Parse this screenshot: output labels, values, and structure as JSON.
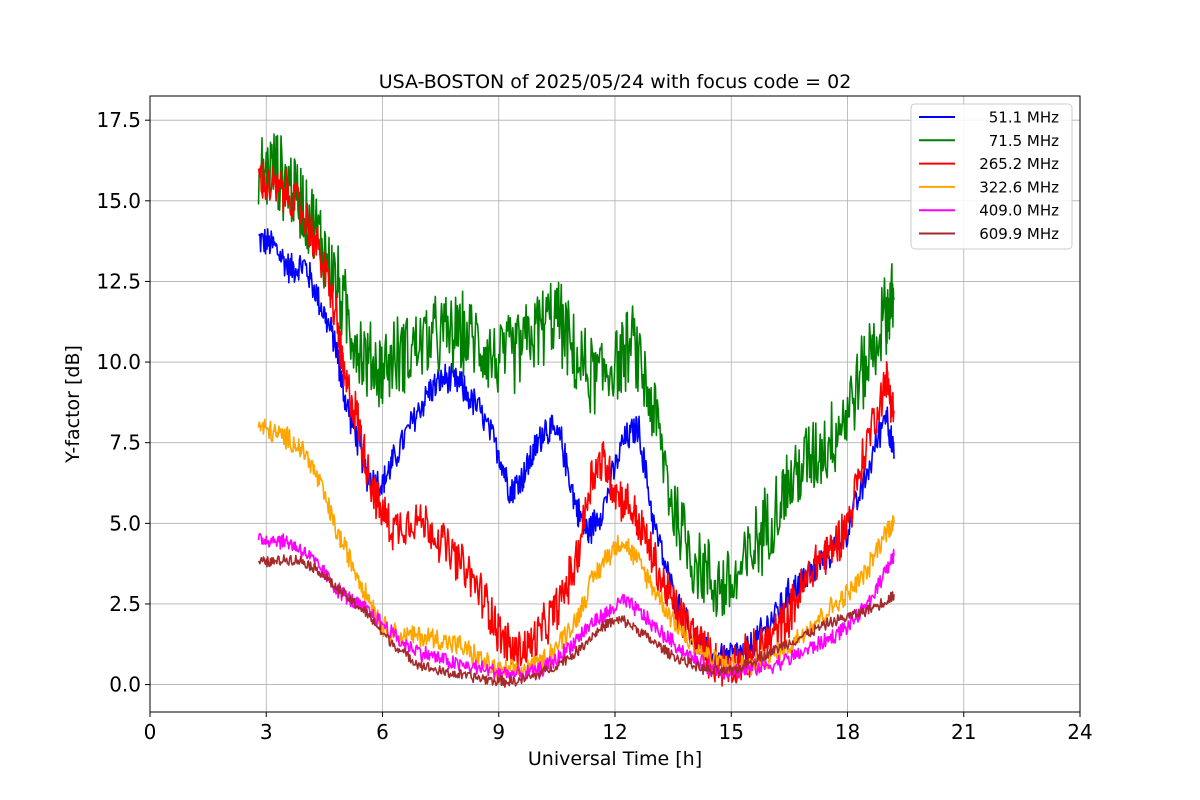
{
  "chart_data": {
    "type": "line",
    "title": "USA-BOSTON of 2025/05/24 with focus code = 02",
    "xlabel": "Universal Time [h]",
    "ylabel": "Y-factor [dB]",
    "xlim": [
      0,
      24
    ],
    "ylim": [
      -0.85,
      18.25
    ],
    "x_ticks": [
      0,
      3,
      6,
      9,
      12,
      15,
      18,
      21,
      24
    ],
    "y_ticks": [
      0.0,
      2.5,
      5.0,
      7.5,
      10.0,
      12.5,
      15.0,
      17.5
    ],
    "y_tick_labels": [
      "0.0",
      "2.5",
      "5.0",
      "7.5",
      "10.0",
      "12.5",
      "15.0",
      "17.5"
    ],
    "grid": true,
    "legend_position": "top-right",
    "series": [
      {
        "name": "51.1 MHz",
        "color": "#0000ff",
        "x": [
          2.8,
          3.2,
          3.6,
          4.0,
          4.4,
          4.8,
          5.0,
          5.3,
          5.6,
          6.0,
          6.3,
          6.8,
          7.2,
          7.6,
          8.0,
          8.5,
          9.0,
          9.3,
          9.6,
          9.9,
          10.2,
          10.6,
          11.0,
          11.3,
          11.7,
          12.2,
          12.6,
          13.0,
          13.5,
          14.0,
          14.5,
          15.0,
          15.4,
          15.8,
          16.2,
          16.6,
          17.0,
          17.5,
          18.0,
          18.5,
          19.0,
          19.2
        ],
        "values": [
          13.8,
          13.6,
          12.9,
          13.0,
          11.8,
          10.5,
          9.0,
          7.8,
          6.5,
          6.2,
          7.0,
          8.2,
          9.1,
          9.5,
          9.3,
          8.5,
          7.2,
          6.0,
          6.4,
          7.2,
          8.0,
          7.6,
          5.5,
          4.7,
          5.5,
          7.5,
          8.0,
          5.0,
          2.8,
          1.5,
          0.8,
          0.9,
          1.0,
          1.6,
          2.3,
          3.0,
          3.4,
          4.0,
          4.8,
          6.5,
          8.5,
          7.0
        ]
      },
      {
        "name": "71.5 MHz",
        "color": "#008000",
        "x": [
          2.8,
          3.2,
          3.6,
          4.0,
          4.4,
          4.8,
          5.2,
          5.6,
          6.0,
          6.5,
          7.0,
          7.5,
          8.0,
          8.5,
          9.0,
          9.5,
          10.0,
          10.5,
          11.0,
          11.5,
          12.0,
          12.5,
          13.0,
          13.5,
          14.0,
          14.5,
          15.0,
          15.5,
          16.0,
          16.5,
          17.0,
          17.5,
          18.0,
          18.5,
          19.0,
          19.2
        ],
        "values": [
          15.8,
          16.0,
          15.5,
          14.8,
          13.8,
          12.5,
          11.0,
          10.0,
          9.8,
          10.3,
          10.6,
          10.8,
          10.9,
          10.6,
          10.0,
          10.4,
          11.0,
          11.5,
          10.0,
          9.5,
          10.0,
          10.5,
          8.5,
          5.5,
          4.0,
          3.2,
          3.0,
          4.0,
          5.2,
          6.2,
          7.0,
          7.5,
          8.5,
          10.0,
          11.5,
          12.0
        ]
      },
      {
        "name": "265.2 MHz",
        "color": "#ff0000",
        "x": [
          2.8,
          3.2,
          3.6,
          4.0,
          4.4,
          4.8,
          5.0,
          5.3,
          5.6,
          5.9,
          6.3,
          6.8,
          7.3,
          7.8,
          8.3,
          8.7,
          9.0,
          9.4,
          9.8,
          10.2,
          10.6,
          11.0,
          11.4,
          11.7,
          12.0,
          12.4,
          12.8,
          13.2,
          13.6,
          14.0,
          14.4,
          14.8,
          15.2,
          15.6,
          16.0,
          16.4,
          16.8,
          17.2,
          17.6,
          18.0,
          18.5,
          19.0,
          19.2
        ],
        "values": [
          15.7,
          15.4,
          15.2,
          14.5,
          13.3,
          11.5,
          9.5,
          8.5,
          6.8,
          5.5,
          4.8,
          5.2,
          4.8,
          4.0,
          3.3,
          2.5,
          1.6,
          1.0,
          1.2,
          1.8,
          2.6,
          3.8,
          6.5,
          7.0,
          6.0,
          5.5,
          4.5,
          3.2,
          2.3,
          1.6,
          0.9,
          0.6,
          0.7,
          1.0,
          1.4,
          2.0,
          2.9,
          3.8,
          4.2,
          5.0,
          7.5,
          9.5,
          8.5
        ]
      },
      {
        "name": "322.6 MHz",
        "color": "#ffa500",
        "x": [
          2.8,
          3.2,
          3.6,
          4.0,
          4.4,
          4.8,
          5.2,
          5.6,
          6.0,
          6.5,
          7.0,
          7.5,
          8.0,
          8.5,
          9.0,
          9.5,
          10.0,
          10.5,
          11.0,
          11.4,
          11.8,
          12.2,
          12.6,
          13.0,
          13.5,
          14.0,
          14.5,
          15.0,
          15.5,
          16.0,
          16.5,
          17.0,
          17.5,
          18.0,
          18.5,
          19.0,
          19.2
        ],
        "values": [
          8.0,
          7.8,
          7.6,
          7.2,
          6.2,
          4.8,
          3.8,
          2.8,
          1.8,
          1.5,
          1.5,
          1.4,
          1.2,
          0.8,
          0.4,
          0.4,
          0.6,
          1.2,
          2.0,
          3.2,
          4.0,
          4.5,
          3.8,
          3.0,
          2.0,
          1.2,
          0.8,
          0.6,
          0.6,
          0.8,
          1.2,
          1.8,
          2.3,
          2.8,
          3.5,
          4.8,
          5.0
        ]
      },
      {
        "name": "409.0 MHz",
        "color": "#ff00ff",
        "x": [
          2.8,
          3.2,
          3.6,
          4.0,
          4.4,
          4.8,
          5.2,
          5.6,
          6.0,
          6.5,
          7.0,
          7.5,
          8.0,
          8.5,
          9.0,
          9.5,
          10.0,
          10.5,
          11.0,
          11.4,
          11.8,
          12.2,
          12.6,
          13.0,
          13.5,
          14.0,
          14.5,
          15.0,
          15.5,
          16.0,
          16.5,
          17.0,
          17.5,
          18.0,
          18.5,
          19.0,
          19.2
        ],
        "values": [
          4.5,
          4.5,
          4.4,
          4.1,
          3.6,
          3.0,
          2.6,
          2.3,
          1.9,
          1.3,
          1.0,
          0.8,
          0.6,
          0.5,
          0.4,
          0.3,
          0.4,
          0.8,
          1.4,
          1.9,
          2.2,
          2.6,
          2.3,
          1.8,
          1.3,
          0.8,
          0.5,
          0.4,
          0.5,
          0.6,
          0.8,
          1.1,
          1.4,
          1.8,
          2.4,
          3.6,
          4.0
        ]
      },
      {
        "name": "609.9 MHz",
        "color": "#a52a2a",
        "x": [
          2.8,
          3.2,
          3.6,
          4.0,
          4.4,
          4.8,
          5.2,
          5.6,
          6.0,
          6.5,
          7.0,
          7.5,
          8.0,
          8.5,
          9.0,
          9.5,
          10.0,
          10.5,
          11.0,
          11.4,
          11.8,
          12.2,
          12.6,
          13.0,
          13.5,
          14.0,
          14.5,
          15.0,
          15.5,
          16.0,
          16.5,
          17.0,
          17.5,
          18.0,
          18.5,
          19.0,
          19.2
        ],
        "values": [
          3.8,
          3.8,
          3.9,
          3.8,
          3.5,
          3.0,
          2.6,
          2.2,
          1.6,
          1.0,
          0.6,
          0.4,
          0.3,
          0.2,
          0.1,
          0.1,
          0.3,
          0.6,
          1.0,
          1.5,
          1.9,
          2.0,
          1.7,
          1.3,
          0.9,
          0.6,
          0.4,
          0.4,
          0.7,
          1.0,
          1.3,
          1.6,
          1.9,
          2.1,
          2.3,
          2.6,
          2.8
        ]
      }
    ]
  }
}
